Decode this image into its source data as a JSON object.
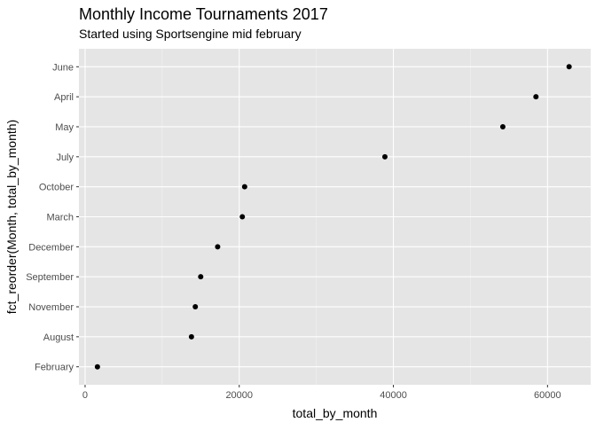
{
  "colors": {
    "panel_background": "#e5e5e5",
    "grid_major": "#ffffff",
    "grid_minor": "#f2f2f2",
    "point": "#000000",
    "tick_text": "#4d4d4d",
    "tick_mark": "#333333"
  },
  "chart_data": {
    "type": "scatter",
    "title": "Monthly Income Tournaments 2017",
    "subtitle": "Started using Sportsengine mid february",
    "xlabel": "total_by_month",
    "ylabel": "fct_reorder(Month, total_by_month)",
    "xlim": [
      -800,
      65600
    ],
    "x_ticks": [
      0,
      20000,
      40000,
      60000
    ],
    "x_tick_labels": [
      "0",
      "20000",
      "40000",
      "60000"
    ],
    "categories": [
      "February",
      "August",
      "November",
      "September",
      "December",
      "March",
      "October",
      "July",
      "May",
      "April",
      "June"
    ],
    "values": [
      1600,
      13800,
      14300,
      15000,
      17200,
      20400,
      20700,
      38900,
      54200,
      58500,
      62800
    ],
    "grid": true,
    "legend": "none"
  }
}
